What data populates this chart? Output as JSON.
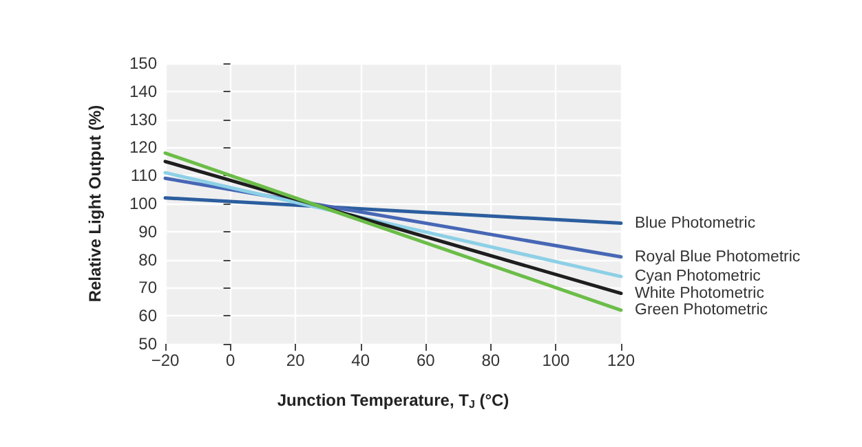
{
  "chart_data": {
    "type": "line",
    "xlabel": "Junction Temperature, T$_{J}$ (°C)",
    "ylabel": "Relative Light Output (%)",
    "x": [
      -20,
      120
    ],
    "series": [
      {
        "name": "Blue Photometric",
        "color": "#2c5e9e",
        "values": [
          102,
          93
        ]
      },
      {
        "name": "Royal Blue Photometric",
        "color": "#4767b5",
        "values": [
          109,
          81
        ]
      },
      {
        "name": "Cyan Photometric",
        "color": "#8dd0e6",
        "values": [
          111,
          74
        ]
      },
      {
        "name": "White Photometric",
        "color": "#1e1e1e",
        "values": [
          115,
          68
        ]
      },
      {
        "name": "Green Photometric",
        "color": "#6bbd48",
        "values": [
          118,
          62
        ]
      }
    ],
    "xlim": [
      -20,
      120
    ],
    "xticks": [
      -20,
      0,
      20,
      40,
      60,
      80,
      100,
      120
    ],
    "ylim": [
      50,
      150
    ],
    "yticks": [
      50,
      60,
      70,
      80,
      90,
      100,
      110,
      120,
      130,
      140,
      150
    ],
    "grid": true,
    "marker": "none",
    "line_style": "solid",
    "legend": false
  }
}
